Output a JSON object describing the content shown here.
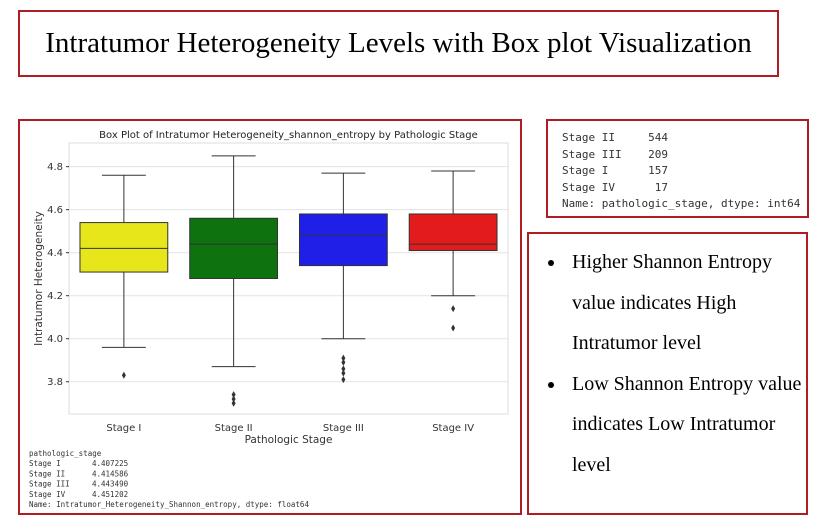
{
  "title": "Intratumor Heterogeneity Levels with Box plot Visualization",
  "chart_data": {
    "type": "box",
    "title": "Box Plot of Intratumor Heterogeneity_shannon_entropy by Pathologic Stage",
    "x_label": "Pathologic Stage",
    "y_label": "Intratumor Heterogeneity",
    "categories": [
      "Stage I",
      "Stage II",
      "Stage III",
      "Stage IV"
    ],
    "boxes": [
      {
        "color": "#e6e61a",
        "whislo": 3.96,
        "q1": 4.31,
        "med": 4.42,
        "q3": 4.54,
        "whishi": 4.76,
        "fliers": [
          3.83
        ]
      },
      {
        "color": "#0e720e",
        "whislo": 3.87,
        "q1": 4.28,
        "med": 4.44,
        "q3": 4.56,
        "whishi": 4.85,
        "fliers": [
          3.74,
          3.72,
          3.7
        ]
      },
      {
        "color": "#1f1fe8",
        "whislo": 4.0,
        "q1": 4.34,
        "med": 4.48,
        "q3": 4.58,
        "whishi": 4.77,
        "fliers": [
          3.91,
          3.89,
          3.86,
          3.84,
          3.81
        ]
      },
      {
        "color": "#e31b1c",
        "whislo": 4.2,
        "q1": 4.41,
        "med": 4.44,
        "q3": 4.58,
        "whishi": 4.78,
        "fliers": [
          4.14,
          4.05
        ]
      }
    ],
    "ylim": [
      3.65,
      4.91
    ],
    "yticks": [
      3.8,
      {
        "value": 4,
        "label": "4.0"
      },
      4.2,
      4.4,
      4.6,
      4.8
    ],
    "grid": true
  },
  "mean_output": {
    "header": "pathologic_stage",
    "rows": [
      [
        "Stage I",
        "4.407225"
      ],
      [
        "Stage II",
        "4.414586"
      ],
      [
        "Stage III",
        "4.443490"
      ],
      [
        "Stage IV",
        "4.451202"
      ]
    ],
    "footer": "Name: Intratumor_Heterogeneity_Shannon_entropy, dtype: float64"
  },
  "count_output": {
    "rows": [
      [
        "Stage II",
        "544"
      ],
      [
        "Stage III",
        "209"
      ],
      [
        "Stage I",
        "157"
      ],
      [
        "Stage IV",
        "17"
      ]
    ],
    "footer": "Name: pathologic_stage, dtype: int64"
  },
  "bullets": [
    "Higher Shannon Entropy value indicates High Intratumor level",
    "Low Shannon Entropy value indicates Low Intratumor level"
  ]
}
